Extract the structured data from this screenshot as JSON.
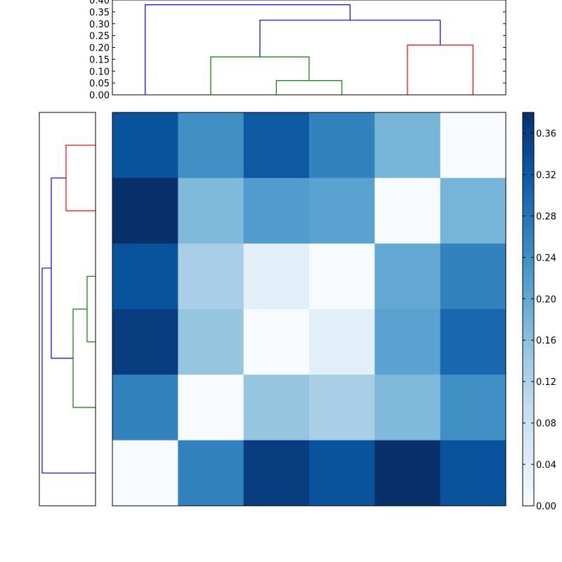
{
  "chart_data": [
    {
      "type": "heatmap",
      "title": "",
      "rows": 6,
      "cols": 6,
      "values": [
        [
          0.33,
          0.24,
          0.32,
          0.26,
          0.18,
          0.0
        ],
        [
          0.38,
          0.17,
          0.22,
          0.21,
          0.0,
          0.18
        ],
        [
          0.33,
          0.13,
          0.04,
          0.0,
          0.2,
          0.26
        ],
        [
          0.36,
          0.15,
          0.0,
          0.04,
          0.21,
          0.3
        ],
        [
          0.26,
          0.0,
          0.15,
          0.13,
          0.17,
          0.24
        ],
        [
          0.0,
          0.26,
          0.36,
          0.33,
          0.38,
          0.33
        ]
      ],
      "colormap": "Blues",
      "vmin": 0.0,
      "vmax": 0.38,
      "xticks": false,
      "yticks": false
    },
    {
      "type": "colorbar",
      "ticks": [
        "0.00",
        "0.04",
        "0.08",
        "0.12",
        "0.16",
        "0.20",
        "0.24",
        "0.28",
        "0.32",
        "0.36"
      ],
      "tick_values": [
        0.0,
        0.04,
        0.08,
        0.12,
        0.16,
        0.2,
        0.24,
        0.28,
        0.32,
        0.36
      ],
      "range": [
        0.0,
        0.38
      ]
    },
    {
      "type": "dendrogram",
      "orientation": "top",
      "leaf_count": 6,
      "ylim": [
        0.0,
        0.4
      ],
      "yticks": [
        "0.00",
        "0.05",
        "0.10",
        "0.15",
        "0.20",
        "0.25",
        "0.30",
        "0.35",
        "0.40"
      ],
      "ytick_values": [
        0.0,
        0.05,
        0.1,
        0.15,
        0.2,
        0.25,
        0.3,
        0.35,
        0.4
      ],
      "links": [
        {
          "left": 3,
          "right": 4,
          "height": 0.06,
          "color": "#008000"
        },
        {
          "left": 2,
          "right": 3.5,
          "height": 0.16,
          "color": "#008000"
        },
        {
          "left": 5,
          "right": 6,
          "height": 0.21,
          "color": "#ff0000"
        },
        {
          "left": 2.75,
          "right": 5.5,
          "height": 0.315,
          "color": "#0000ff"
        },
        {
          "left": 1,
          "right": 4.125,
          "height": 0.38,
          "color": "#0000ff"
        }
      ]
    },
    {
      "type": "dendrogram",
      "orientation": "left",
      "leaf_count": 6,
      "xlim": [
        0.0,
        0.4
      ],
      "links": [
        {
          "top": 1,
          "bottom": 2,
          "height": 0.21,
          "color": "#ff0000"
        },
        {
          "top": 3,
          "bottom": 4,
          "height": 0.06,
          "color": "#008000"
        },
        {
          "top": 3.5,
          "bottom": 5,
          "height": 0.16,
          "color": "#008000"
        },
        {
          "top": 1.5,
          "bottom": 4.25,
          "height": 0.315,
          "color": "#0000ff"
        },
        {
          "top": 2.875,
          "bottom": 6,
          "height": 0.38,
          "color": "#0000ff"
        }
      ]
    }
  ],
  "colors": {
    "axis": "#000000",
    "cluster_green": "#008000",
    "cluster_red": "#ff0000",
    "cluster_blue": "#0000ff"
  }
}
